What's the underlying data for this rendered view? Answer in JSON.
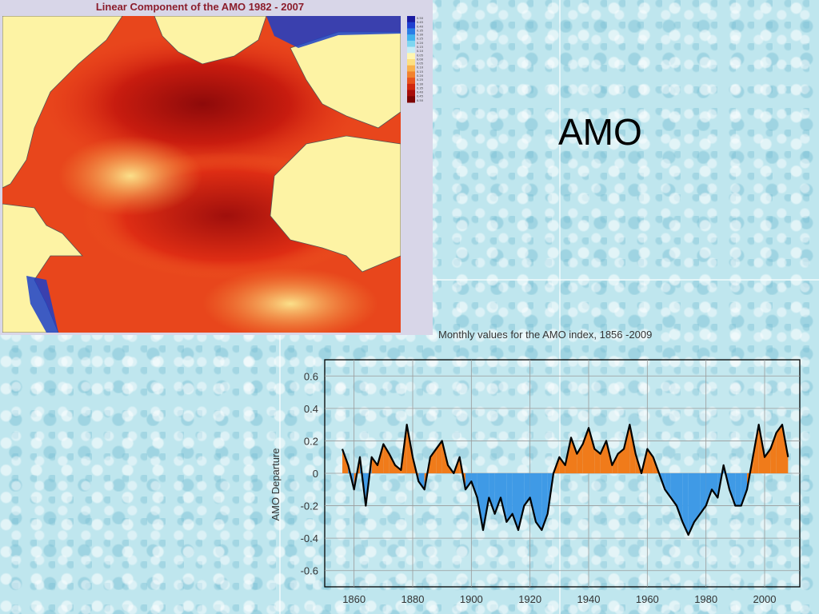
{
  "slide": {
    "title": "AMO"
  },
  "map": {
    "title": "Linear Component of the AMO 1982 - 2007",
    "colorbar_labels": [
      "0.50",
      "0.45",
      "0.40",
      "0.35",
      "0.30",
      "0.25",
      "0.20",
      "0.15",
      "0.10",
      "0.05",
      "0.00",
      "0.05",
      "0.10",
      "0.15",
      "0.20",
      "0.25",
      "0.30",
      "0.35",
      "0.40",
      "0.45",
      "0.50"
    ]
  },
  "chart_data": {
    "type": "area",
    "title": "Monthly values for the AMO index, 1856 -2009",
    "ylabel": "AMO Departure",
    "xlabel": "",
    "xlim": [
      1850,
      2012
    ],
    "ylim": [
      -0.7,
      0.7
    ],
    "xticks": [
      1860,
      1880,
      1900,
      1920,
      1940,
      1960,
      1980,
      2000
    ],
    "yticks": [
      0.6,
      0.4,
      0.2,
      0,
      -0.2,
      -0.4,
      -0.6
    ],
    "ytick_labels": [
      "0.6",
      "0.4",
      "0.2",
      "0",
      "-0.2",
      "-0.4",
      "-0.6"
    ],
    "grid": true,
    "colors": {
      "positive": "#f07b1a",
      "negative": "#3f9ae6",
      "smoothed": "#000000"
    },
    "series": [
      {
        "x": [
          1856,
          1858,
          1860,
          1862,
          1864,
          1866,
          1868,
          1870,
          1872,
          1874,
          1876,
          1878,
          1880,
          1882,
          1884,
          1886,
          1888,
          1890,
          1892,
          1894,
          1896,
          1898,
          1900,
          1902,
          1904,
          1906,
          1908,
          1910,
          1912,
          1914,
          1916,
          1918,
          1920,
          1922,
          1924,
          1926,
          1928,
          1930,
          1932,
          1934,
          1936,
          1938,
          1940,
          1942,
          1944,
          1946,
          1948,
          1950,
          1952,
          1954,
          1956,
          1958,
          1960,
          1962,
          1964,
          1966,
          1968,
          1970,
          1972,
          1974,
          1976,
          1978,
          1980,
          1982,
          1984,
          1986,
          1988,
          1990,
          1992,
          1994,
          1996,
          1998,
          2000,
          2002,
          2004,
          2006,
          2008
        ],
        "values": [
          0.15,
          0.05,
          -0.1,
          0.1,
          -0.2,
          0.1,
          0.05,
          0.18,
          0.12,
          0.05,
          0.02,
          0.3,
          0.1,
          -0.05,
          -0.1,
          0.1,
          0.15,
          0.2,
          0.05,
          0.0,
          0.1,
          -0.1,
          -0.05,
          -0.15,
          -0.35,
          -0.15,
          -0.25,
          -0.15,
          -0.3,
          -0.25,
          -0.35,
          -0.2,
          -0.15,
          -0.3,
          -0.35,
          -0.25,
          0.0,
          0.1,
          0.05,
          0.22,
          0.12,
          0.18,
          0.28,
          0.15,
          0.12,
          0.2,
          0.05,
          0.12,
          0.15,
          0.3,
          0.12,
          0.0,
          0.15,
          0.1,
          0.0,
          -0.1,
          -0.15,
          -0.2,
          -0.3,
          -0.38,
          -0.3,
          -0.25,
          -0.2,
          -0.1,
          -0.15,
          0.05,
          -0.1,
          -0.2,
          -0.2,
          -0.1,
          0.1,
          0.3,
          0.1,
          0.15,
          0.25,
          0.3,
          0.1
        ]
      }
    ]
  }
}
